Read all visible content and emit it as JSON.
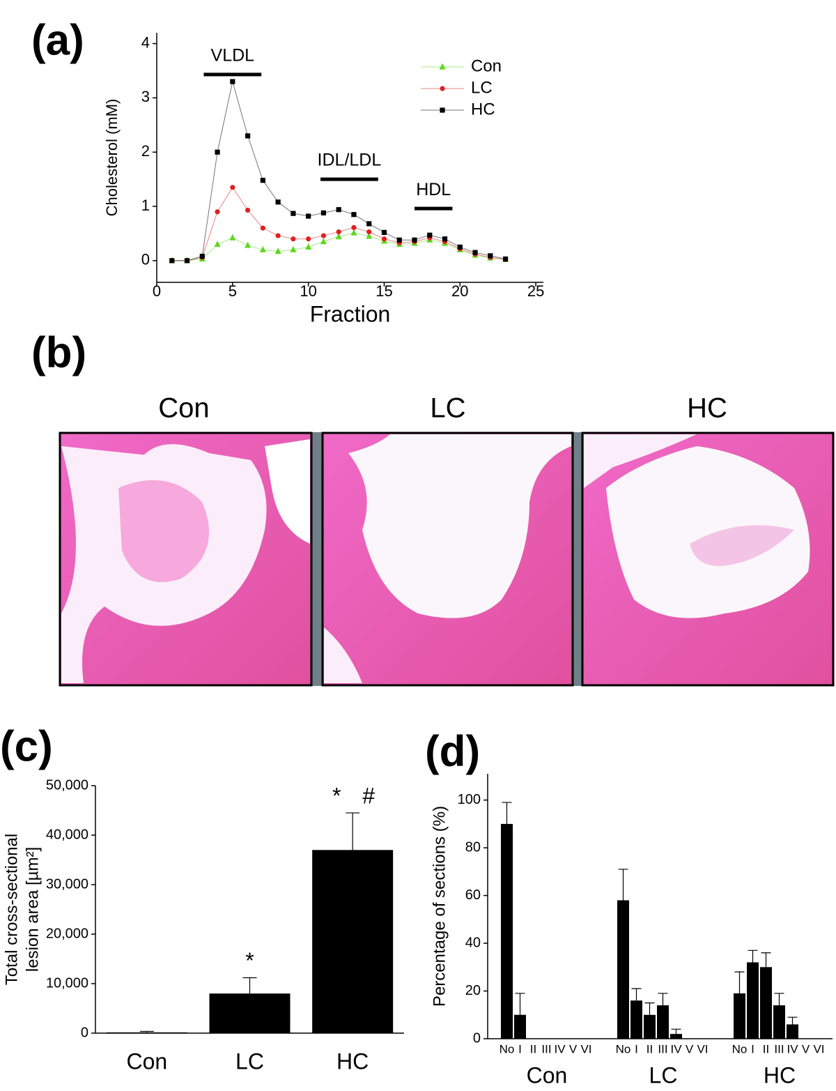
{
  "chart_data": [
    {
      "type": "line",
      "panel_label": "(a)",
      "xlabel": "Fraction",
      "ylabel": "Cholesterol (mM)",
      "x": [
        1,
        2,
        3,
        4,
        5,
        6,
        7,
        8,
        9,
        10,
        11,
        12,
        13,
        14,
        15,
        16,
        17,
        18,
        19,
        20,
        21,
        22,
        23
      ],
      "series": [
        {
          "name": "Con",
          "color": "#5fd81e",
          "marker": "triangle",
          "values": [
            0,
            0,
            0.03,
            0.3,
            0.42,
            0.28,
            0.2,
            0.17,
            0.2,
            0.25,
            0.35,
            0.44,
            0.51,
            0.45,
            0.36,
            0.3,
            0.32,
            0.38,
            0.32,
            0.2,
            0.1,
            0.05,
            0.02
          ]
        },
        {
          "name": "LC",
          "color": "#e02020",
          "marker": "circle",
          "values": [
            0,
            0,
            0.06,
            0.9,
            1.35,
            0.93,
            0.6,
            0.46,
            0.4,
            0.4,
            0.46,
            0.53,
            0.61,
            0.53,
            0.4,
            0.33,
            0.35,
            0.42,
            0.35,
            0.22,
            0.12,
            0.06,
            0.02
          ]
        },
        {
          "name": "HC",
          "color": "#000000",
          "marker": "square",
          "values": [
            0,
            0,
            0.08,
            2.0,
            3.3,
            2.3,
            1.48,
            1.08,
            0.87,
            0.82,
            0.88,
            0.94,
            0.85,
            0.68,
            0.52,
            0.38,
            0.38,
            0.47,
            0.4,
            0.25,
            0.15,
            0.09,
            0.03
          ]
        }
      ],
      "xlim": [
        0,
        25.5
      ],
      "ylim": [
        -0.4,
        4.2
      ],
      "xticks": [
        0,
        5,
        10,
        15,
        20,
        25
      ],
      "yticks": [
        0,
        1,
        2,
        3,
        4
      ],
      "legend": "upper right",
      "annotations": [
        {
          "text": "VLDL",
          "x": [
            3.1,
            6.9
          ],
          "y": 3.43
        },
        {
          "text": "IDL/LDL",
          "x": [
            10.8,
            14.6
          ],
          "y": 1.5
        },
        {
          "text": "HDL",
          "x": [
            17,
            19.5
          ],
          "y": 0.96
        }
      ]
    },
    {
      "type": "bar",
      "panel_label": "(c)",
      "ylabel": [
        "Total cross-sectional",
        "lesion area [µm²]"
      ],
      "categories": [
        "Con",
        "LC",
        "HC"
      ],
      "values": [
        150,
        8000,
        37000
      ],
      "errors": [
        200,
        3200,
        7500
      ],
      "color": "#000000",
      "ylim": [
        0,
        50000
      ],
      "yticks": [
        0,
        {
          "value": 10000,
          "label": "10,000"
        },
        {
          "value": 20000,
          "label": "20,000"
        },
        {
          "value": 30000,
          "label": "30,000"
        },
        {
          "value": 40000,
          "label": "40,000"
        },
        {
          "value": 50000,
          "label": "50,000"
        }
      ],
      "annotations": [
        {
          "text": "*",
          "category": 1
        },
        {
          "text": "*",
          "category": 2
        },
        {
          "text": "#",
          "category": 2
        }
      ]
    },
    {
      "type": "grouped_bar",
      "panel_label": "(d)",
      "ylabel": "Percentage of sections (%)",
      "categories": [
        "No",
        "I",
        "II",
        "III",
        "IV",
        "V",
        "VI"
      ],
      "series": [
        {
          "name": "Con",
          "color": "#000000",
          "values": [
            90,
            10,
            0,
            0,
            0,
            0,
            0
          ],
          "errors": [
            9,
            9,
            null,
            null,
            null,
            null,
            null
          ]
        },
        {
          "name": "LC",
          "color": "#000000",
          "values": [
            58,
            16,
            10,
            14,
            2,
            0,
            0
          ],
          "errors": [
            13,
            5,
            5,
            5,
            2,
            null,
            null
          ]
        },
        {
          "name": "HC",
          "color": "#000000",
          "values": [
            19,
            32,
            30,
            14,
            6,
            0,
            0
          ],
          "errors": [
            9,
            5,
            6,
            5,
            3,
            null,
            null
          ]
        }
      ],
      "ylim": [
        0,
        111
      ],
      "yticks": [
        0,
        20,
        40,
        60,
        80,
        100
      ]
    }
  ],
  "micrographs": {
    "panel_label": "(b)",
    "titles": [
      "Con",
      "LC",
      "HC"
    ]
  }
}
